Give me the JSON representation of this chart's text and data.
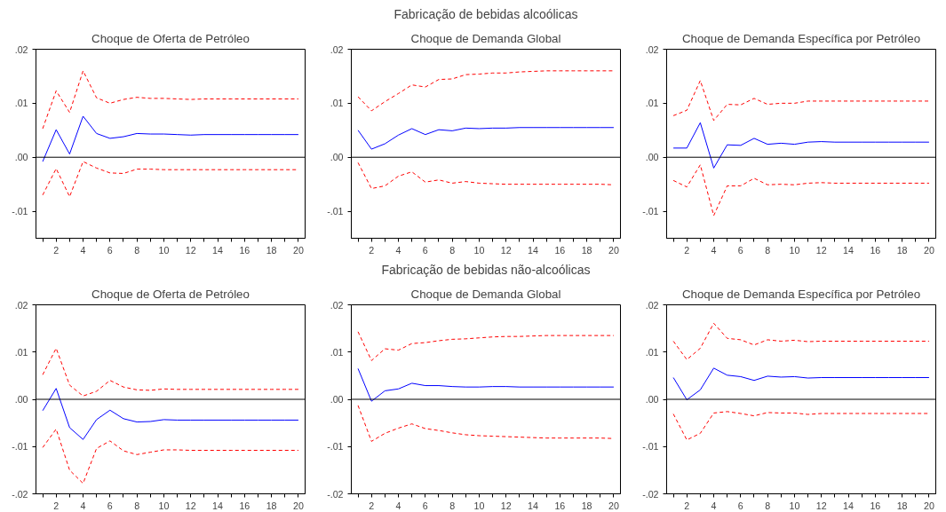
{
  "chart_data": [
    {
      "type": "line",
      "title": "Choque de Oferta de Petróleo",
      "x": [
        1,
        2,
        3,
        4,
        5,
        6,
        7,
        8,
        9,
        10,
        11,
        12,
        13,
        14,
        15,
        16,
        17,
        18,
        19,
        20
      ],
      "xlim": [
        0.5,
        20.5
      ],
      "xticks": [
        {
          "value": 1,
          "label": null
        },
        2,
        {
          "value": 3,
          "label": null
        },
        4,
        {
          "value": 5,
          "label": null
        },
        6,
        {
          "value": 7,
          "label": null
        },
        8,
        {
          "value": 9,
          "label": null
        },
        10,
        {
          "value": 11,
          "label": null
        },
        12,
        {
          "value": 13,
          "label": null
        },
        14,
        {
          "value": 15,
          "label": null
        },
        16,
        {
          "value": 17,
          "label": null
        },
        18,
        {
          "value": 19,
          "label": null
        },
        20
      ],
      "ylim": [
        -0.015,
        0.02
      ],
      "yticks": [
        {
          "value": -0.01,
          "label": "-.01"
        },
        {
          "value": 0,
          "label": ".00"
        },
        {
          "value": 0.01,
          "label": ".01"
        },
        {
          "value": 0.02,
          "label": ".02"
        }
      ],
      "grid": false,
      "ref_lines": [
        {
          "axis": "y",
          "value": 0,
          "color": "#000000",
          "line_style": "solid"
        }
      ],
      "series": [
        {
          "color": "#0000ff",
          "line_style": "solid",
          "values": [
            -0.0008,
            0.0051,
            0.0006,
            0.0076,
            0.0044,
            0.0035,
            0.0038,
            0.0044,
            0.0043,
            0.0043,
            0.0042,
            0.0041,
            0.0042,
            0.0042,
            0.0042,
            0.0042,
            0.0042,
            0.0042,
            0.0042,
            0.0042
          ]
        },
        {
          "color": "#ff0000",
          "line_style": "dashed",
          "values": [
            0.0053,
            0.0123,
            0.0083,
            0.016,
            0.011,
            0.01,
            0.0107,
            0.0111,
            0.0109,
            0.0109,
            0.0108,
            0.0107,
            0.0108,
            0.0108,
            0.0108,
            0.0108,
            0.0108,
            0.0108,
            0.0108,
            0.0108
          ]
        },
        {
          "color": "#ff0000",
          "line_style": "dashed",
          "values": [
            -0.007,
            -0.0021,
            -0.0073,
            -0.0008,
            -0.002,
            -0.0029,
            -0.003,
            -0.0022,
            -0.0022,
            -0.0023,
            -0.0023,
            -0.0023,
            -0.0023,
            -0.0023,
            -0.0023,
            -0.0023,
            -0.0023,
            -0.0023,
            -0.0023,
            -0.0023
          ]
        }
      ]
    },
    {
      "type": "line",
      "subtitle": "Fabricação de bebidas alcoólicas",
      "title": "Choque de Demanda Global",
      "x": [
        1,
        2,
        3,
        4,
        5,
        6,
        7,
        8,
        9,
        10,
        11,
        12,
        13,
        14,
        15,
        16,
        17,
        18,
        19,
        20
      ],
      "xlim": [
        0.5,
        20.5
      ],
      "xticks": [
        {
          "value": 1,
          "label": null
        },
        2,
        {
          "value": 3,
          "label": null
        },
        4,
        {
          "value": 5,
          "label": null
        },
        6,
        {
          "value": 7,
          "label": null
        },
        8,
        {
          "value": 9,
          "label": null
        },
        10,
        {
          "value": 11,
          "label": null
        },
        12,
        {
          "value": 13,
          "label": null
        },
        14,
        {
          "value": 15,
          "label": null
        },
        16,
        {
          "value": 17,
          "label": null
        },
        18,
        {
          "value": 19,
          "label": null
        },
        20
      ],
      "ylim": [
        -0.015,
        0.02
      ],
      "yticks": [
        {
          "value": -0.01,
          "label": "-.01"
        },
        {
          "value": 0,
          "label": ".00"
        },
        {
          "value": 0.01,
          "label": ".01"
        },
        {
          "value": 0.02,
          "label": ".02"
        }
      ],
      "grid": false,
      "ref_lines": [
        {
          "axis": "y",
          "value": 0,
          "color": "#000000",
          "line_style": "solid"
        }
      ],
      "series": [
        {
          "color": "#0000ff",
          "line_style": "solid",
          "values": [
            0.005,
            0.0015,
            0.0025,
            0.0041,
            0.0053,
            0.0042,
            0.0051,
            0.0049,
            0.0054,
            0.0053,
            0.0054,
            0.0054,
            0.0055,
            0.0055,
            0.0055,
            0.0055,
            0.0055,
            0.0055,
            0.0055,
            0.0055
          ]
        },
        {
          "color": "#ff0000",
          "line_style": "dashed",
          "values": [
            0.0112,
            0.0086,
            0.0103,
            0.0118,
            0.0134,
            0.013,
            0.0144,
            0.0145,
            0.0153,
            0.0154,
            0.0156,
            0.0156,
            0.0158,
            0.0159,
            0.016,
            0.016,
            0.016,
            0.016,
            0.016,
            0.016
          ]
        },
        {
          "color": "#ff0000",
          "line_style": "dashed",
          "values": [
            -0.001,
            -0.0058,
            -0.0053,
            -0.0035,
            -0.0027,
            -0.0046,
            -0.0042,
            -0.0048,
            -0.0045,
            -0.0048,
            -0.0049,
            -0.005,
            -0.005,
            -0.005,
            -0.005,
            -0.005,
            -0.005,
            -0.005,
            -0.005,
            -0.0051
          ]
        }
      ]
    },
    {
      "type": "line",
      "title": "Choque de Demanda Específica por Petróleo",
      "x": [
        1,
        2,
        3,
        4,
        5,
        6,
        7,
        8,
        9,
        10,
        11,
        12,
        13,
        14,
        15,
        16,
        17,
        18,
        19,
        20
      ],
      "xlim": [
        0.5,
        20.5
      ],
      "xticks": [
        {
          "value": 1,
          "label": null
        },
        2,
        {
          "value": 3,
          "label": null
        },
        4,
        {
          "value": 5,
          "label": null
        },
        6,
        {
          "value": 7,
          "label": null
        },
        8,
        {
          "value": 9,
          "label": null
        },
        10,
        {
          "value": 11,
          "label": null
        },
        12,
        {
          "value": 13,
          "label": null
        },
        14,
        {
          "value": 15,
          "label": null
        },
        16,
        {
          "value": 17,
          "label": null
        },
        18,
        {
          "value": 19,
          "label": null
        },
        20
      ],
      "ylim": [
        -0.015,
        0.02
      ],
      "yticks": [
        {
          "value": -0.01,
          "label": "-.01"
        },
        {
          "value": 0,
          "label": ".00"
        },
        {
          "value": 0.01,
          "label": ".01"
        },
        {
          "value": 0.02,
          "label": ".02"
        }
      ],
      "grid": false,
      "ref_lines": [
        {
          "axis": "y",
          "value": 0,
          "color": "#000000",
          "line_style": "solid"
        }
      ],
      "series": [
        {
          "color": "#0000ff",
          "line_style": "solid",
          "values": [
            0.0017,
            0.0017,
            0.0064,
            -0.002,
            0.0023,
            0.0022,
            0.0035,
            0.0024,
            0.0026,
            0.0024,
            0.0028,
            0.0029,
            0.0028,
            0.0028,
            0.0028,
            0.0028,
            0.0028,
            0.0028,
            0.0028,
            0.0028
          ]
        },
        {
          "color": "#ff0000",
          "line_style": "dashed",
          "values": [
            0.0077,
            0.0087,
            0.0142,
            0.0068,
            0.0098,
            0.0097,
            0.0109,
            0.0098,
            0.01,
            0.01,
            0.0104,
            0.0104,
            0.0104,
            0.0104,
            0.0104,
            0.0104,
            0.0104,
            0.0104,
            0.0104,
            0.0104
          ]
        },
        {
          "color": "#ff0000",
          "line_style": "dashed",
          "values": [
            -0.0043,
            -0.0055,
            -0.0014,
            -0.0108,
            -0.0053,
            -0.0053,
            -0.0039,
            -0.0051,
            -0.005,
            -0.0051,
            -0.0048,
            -0.0047,
            -0.0048,
            -0.0048,
            -0.0048,
            -0.0048,
            -0.0048,
            -0.0048,
            -0.0048,
            -0.0048
          ]
        }
      ]
    },
    {
      "type": "line",
      "title": "Choque de Oferta de Petróleo",
      "x": [
        1,
        2,
        3,
        4,
        5,
        6,
        7,
        8,
        9,
        10,
        11,
        12,
        13,
        14,
        15,
        16,
        17,
        18,
        19,
        20
      ],
      "xlim": [
        0.5,
        20.5
      ],
      "xticks": [
        {
          "value": 1,
          "label": null
        },
        2,
        {
          "value": 3,
          "label": null
        },
        4,
        {
          "value": 5,
          "label": null
        },
        6,
        {
          "value": 7,
          "label": null
        },
        8,
        {
          "value": 9,
          "label": null
        },
        10,
        {
          "value": 11,
          "label": null
        },
        12,
        {
          "value": 13,
          "label": null
        },
        14,
        {
          "value": 15,
          "label": null
        },
        16,
        {
          "value": 17,
          "label": null
        },
        18,
        {
          "value": 19,
          "label": null
        },
        20
      ],
      "ylim": [
        -0.02,
        0.02
      ],
      "yticks": [
        {
          "value": -0.02,
          "label": "-.02"
        },
        {
          "value": -0.01,
          "label": "-.01"
        },
        {
          "value": 0,
          "label": ".00"
        },
        {
          "value": 0.01,
          "label": ".01"
        },
        {
          "value": 0.02,
          "label": ".02"
        }
      ],
      "grid": false,
      "ref_lines": [
        {
          "axis": "y",
          "value": 0,
          "color": "#000000",
          "line_style": "solid"
        }
      ],
      "series": [
        {
          "color": "#0000ff",
          "line_style": "solid",
          "values": [
            -0.0024,
            0.0023,
            -0.006,
            -0.0085,
            -0.0043,
            -0.0023,
            -0.0041,
            -0.0048,
            -0.0047,
            -0.0043,
            -0.0044,
            -0.0044,
            -0.0044,
            -0.0044,
            -0.0044,
            -0.0044,
            -0.0044,
            -0.0044,
            -0.0044,
            -0.0044
          ]
        },
        {
          "color": "#ff0000",
          "line_style": "dashed",
          "values": [
            0.0052,
            0.0108,
            0.003,
            0.0007,
            0.0017,
            0.004,
            0.0026,
            0.002,
            0.0019,
            0.0022,
            0.0021,
            0.0021,
            0.0021,
            0.0021,
            0.0021,
            0.0021,
            0.0021,
            0.0021,
            0.0021,
            0.0021
          ]
        },
        {
          "color": "#ff0000",
          "line_style": "dashed",
          "values": [
            -0.0102,
            -0.0063,
            -0.015,
            -0.0178,
            -0.0104,
            -0.0088,
            -0.0109,
            -0.0117,
            -0.0112,
            -0.0107,
            -0.0107,
            -0.0108,
            -0.0108,
            -0.0108,
            -0.0108,
            -0.0108,
            -0.0108,
            -0.0108,
            -0.0108,
            -0.0108
          ]
        }
      ]
    },
    {
      "type": "line",
      "subtitle": "Fabricação de bebidas não-alcoólicas",
      "title": "Choque de Demanda Global",
      "x": [
        1,
        2,
        3,
        4,
        5,
        6,
        7,
        8,
        9,
        10,
        11,
        12,
        13,
        14,
        15,
        16,
        17,
        18,
        19,
        20
      ],
      "xlim": [
        0.5,
        20.5
      ],
      "xticks": [
        {
          "value": 1,
          "label": null
        },
        2,
        {
          "value": 3,
          "label": null
        },
        4,
        {
          "value": 5,
          "label": null
        },
        6,
        {
          "value": 7,
          "label": null
        },
        8,
        {
          "value": 9,
          "label": null
        },
        10,
        {
          "value": 11,
          "label": null
        },
        12,
        {
          "value": 13,
          "label": null
        },
        14,
        {
          "value": 15,
          "label": null
        },
        16,
        {
          "value": 17,
          "label": null
        },
        18,
        {
          "value": 19,
          "label": null
        },
        20
      ],
      "ylim": [
        -0.02,
        0.02
      ],
      "yticks": [
        {
          "value": -0.02,
          "label": "-.02"
        },
        {
          "value": -0.01,
          "label": "-.01"
        },
        {
          "value": 0,
          "label": ".00"
        },
        {
          "value": 0.01,
          "label": ".01"
        },
        {
          "value": 0.02,
          "label": ".02"
        }
      ],
      "grid": false,
      "ref_lines": [
        {
          "axis": "y",
          "value": 0,
          "color": "#000000",
          "line_style": "solid"
        }
      ],
      "series": [
        {
          "color": "#0000ff",
          "line_style": "solid",
          "values": [
            0.0065,
            -0.0004,
            0.0018,
            0.0022,
            0.0034,
            0.0029,
            0.0029,
            0.0027,
            0.0026,
            0.0026,
            0.0027,
            0.0027,
            0.0026,
            0.0026,
            0.0026,
            0.0026,
            0.0026,
            0.0026,
            0.0026,
            0.0026
          ]
        },
        {
          "color": "#ff0000",
          "line_style": "dashed",
          "values": [
            0.0143,
            0.0082,
            0.0107,
            0.0104,
            0.0118,
            0.012,
            0.0124,
            0.0127,
            0.0128,
            0.013,
            0.0132,
            0.0133,
            0.0133,
            0.0134,
            0.0135,
            0.0135,
            0.0135,
            0.0135,
            0.0135,
            0.0135
          ]
        },
        {
          "color": "#ff0000",
          "line_style": "dashed",
          "values": [
            -0.0013,
            -0.0089,
            -0.0072,
            -0.0061,
            -0.0052,
            -0.0062,
            -0.0066,
            -0.0071,
            -0.0075,
            -0.0077,
            -0.0078,
            -0.0079,
            -0.008,
            -0.0081,
            -0.0082,
            -0.0082,
            -0.0082,
            -0.0082,
            -0.0082,
            -0.0083
          ]
        }
      ]
    },
    {
      "type": "line",
      "title": "Choque de Demanda Específica por Petróleo",
      "x": [
        1,
        2,
        3,
        4,
        5,
        6,
        7,
        8,
        9,
        10,
        11,
        12,
        13,
        14,
        15,
        16,
        17,
        18,
        19,
        20
      ],
      "xlim": [
        0.5,
        20.5
      ],
      "xticks": [
        {
          "value": 1,
          "label": null
        },
        2,
        {
          "value": 3,
          "label": null
        },
        4,
        {
          "value": 5,
          "label": null
        },
        6,
        {
          "value": 7,
          "label": null
        },
        8,
        {
          "value": 9,
          "label": null
        },
        10,
        {
          "value": 11,
          "label": null
        },
        12,
        {
          "value": 13,
          "label": null
        },
        14,
        {
          "value": 15,
          "label": null
        },
        16,
        {
          "value": 17,
          "label": null
        },
        18,
        {
          "value": 19,
          "label": null
        },
        20
      ],
      "ylim": [
        -0.02,
        0.02
      ],
      "yticks": [
        {
          "value": -0.02,
          "label": "-.02"
        },
        {
          "value": -0.01,
          "label": "-.01"
        },
        {
          "value": 0,
          "label": ".00"
        },
        {
          "value": 0.01,
          "label": ".01"
        },
        {
          "value": 0.02,
          "label": ".02"
        }
      ],
      "grid": false,
      "ref_lines": [
        {
          "axis": "y",
          "value": 0,
          "color": "#000000",
          "line_style": "solid"
        }
      ],
      "series": [
        {
          "color": "#0000ff",
          "line_style": "solid",
          "values": [
            0.0046,
            -0.0001,
            0.002,
            0.0066,
            0.0051,
            0.0048,
            0.004,
            0.0049,
            0.0047,
            0.0048,
            0.0045,
            0.0046,
            0.0046,
            0.0046,
            0.0046,
            0.0046,
            0.0046,
            0.0046,
            0.0046,
            0.0046
          ]
        },
        {
          "color": "#ff0000",
          "line_style": "dashed",
          "values": [
            0.0123,
            0.0084,
            0.0108,
            0.0161,
            0.0129,
            0.0126,
            0.0115,
            0.0126,
            0.0123,
            0.0125,
            0.0122,
            0.0123,
            0.0123,
            0.0123,
            0.0123,
            0.0123,
            0.0123,
            0.0123,
            0.0123,
            0.0123
          ]
        },
        {
          "color": "#ff0000",
          "line_style": "dashed",
          "values": [
            -0.0031,
            -0.0086,
            -0.0072,
            -0.0029,
            -0.0026,
            -0.003,
            -0.0035,
            -0.0028,
            -0.0029,
            -0.0029,
            -0.0032,
            -0.003,
            -0.003,
            -0.003,
            -0.003,
            -0.003,
            -0.003,
            -0.003,
            -0.003,
            -0.003
          ]
        }
      ]
    }
  ]
}
